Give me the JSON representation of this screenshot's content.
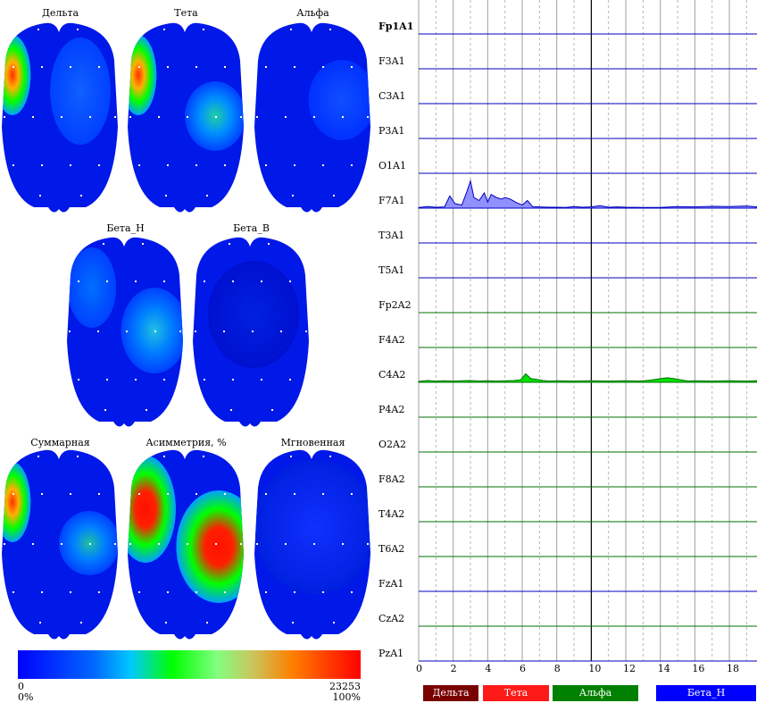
{
  "maps": {
    "row1": [
      "Дельта",
      "Тета",
      "Альфа"
    ],
    "row2": [
      "Бета_Н",
      "Бета_В"
    ],
    "row3": [
      "Суммарная",
      "Асимметрия, %",
      "Мгновенная"
    ]
  },
  "scale": {
    "min": "0",
    "max": "23253",
    "min_pct": "0%",
    "max_pct": "100%"
  },
  "channels": [
    "Fp1A1",
    "F3A1",
    "C3A1",
    "P3A1",
    "O1A1",
    "F7A1",
    "T3A1",
    "T5A1",
    "Fp2A2",
    "F4A2",
    "C4A2",
    "P4A2",
    "O2A2",
    "F8A2",
    "T4A2",
    "T6A2",
    "FzA1",
    "CzA2",
    "PzA1"
  ],
  "selected_channel": "Fp1A1",
  "x_ticks": [
    "0",
    "2",
    "4",
    "6",
    "8",
    "10",
    "12",
    "14",
    "16",
    "18"
  ],
  "bands": [
    {
      "label": "Дельта",
      "color": "#7a0000"
    },
    {
      "label": "Тета",
      "color": "#ff1a1a"
    },
    {
      "label": "Альфа",
      "color": "#008000"
    },
    {
      "label": "Бета_Н",
      "color": "#0000ff"
    }
  ],
  "colors": {
    "left_channels": "#0000c0",
    "right_channels": "#007000",
    "grid": "#888888",
    "marker": "#000000"
  },
  "chart_data": {
    "type": "area",
    "xlabel": "",
    "ylabel": "",
    "xlim": [
      0,
      19.6
    ],
    "marker_x": 10,
    "series": [
      {
        "channel": "F7A1",
        "fill": "#9090ff",
        "stroke": "#0000c0",
        "x": [
          0,
          0.5,
          1,
          1.5,
          1.8,
          2.1,
          2.5,
          2.8,
          3.0,
          3.2,
          3.5,
          3.8,
          4.0,
          4.2,
          4.5,
          4.8,
          5.0,
          5.3,
          5.6,
          6.0,
          6.3,
          6.6,
          7,
          7.5,
          8,
          8.5,
          9,
          9.5,
          10,
          10.5,
          11,
          11.5,
          12,
          13,
          14,
          15,
          16,
          17,
          18,
          19,
          19.6
        ],
        "y": [
          0.02,
          0.05,
          0.03,
          0.04,
          0.4,
          0.15,
          0.1,
          0.55,
          0.9,
          0.35,
          0.25,
          0.5,
          0.2,
          0.45,
          0.35,
          0.3,
          0.35,
          0.3,
          0.2,
          0.1,
          0.25,
          0.05,
          0.04,
          0.03,
          0.03,
          0.02,
          0.05,
          0.03,
          0.04,
          0.08,
          0.03,
          0.04,
          0.03,
          0.02,
          0.02,
          0.05,
          0.04,
          0.06,
          0.05,
          0.07,
          0.04
        ]
      },
      {
        "channel": "C4A2",
        "fill": "#00e000",
        "stroke": "#007000",
        "x": [
          0,
          0.5,
          1,
          1.5,
          2,
          2.5,
          3,
          3.5,
          4,
          4.5,
          5,
          5.5,
          5.9,
          6.2,
          6.5,
          6.8,
          7.2,
          7.6,
          8,
          9,
          10,
          11,
          12,
          12.8,
          13.4,
          14,
          14.4,
          14.8,
          15.2,
          15.6,
          16,
          17,
          18,
          19,
          19.6
        ],
        "y": [
          0.03,
          0.06,
          0.04,
          0.05,
          0.04,
          0.05,
          0.06,
          0.04,
          0.05,
          0.04,
          0.05,
          0.06,
          0.08,
          0.28,
          0.12,
          0.1,
          0.06,
          0.04,
          0.05,
          0.04,
          0.05,
          0.04,
          0.05,
          0.04,
          0.07,
          0.12,
          0.15,
          0.12,
          0.08,
          0.04,
          0.05,
          0.04,
          0.05,
          0.04,
          0.05
        ]
      }
    ]
  }
}
